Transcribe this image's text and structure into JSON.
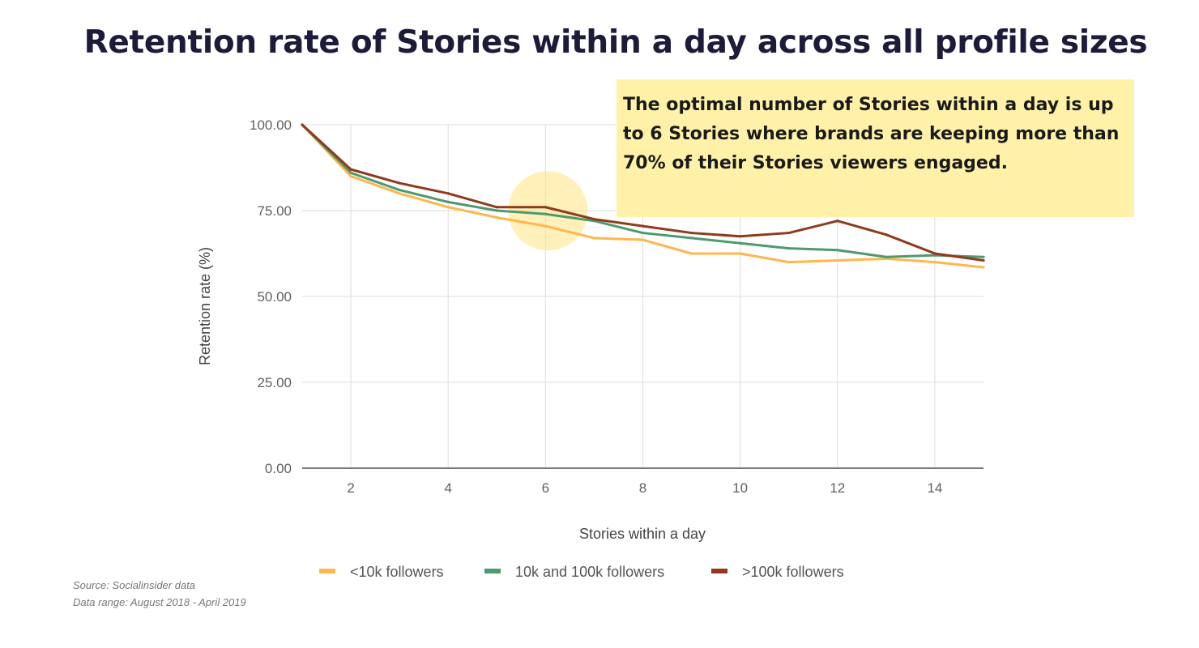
{
  "title": "Retention rate of Stories within a day across all profile sizes",
  "callout": {
    "text_before": "The optimal number of Stories within a day is up to ",
    "text_bold": "6 Stories",
    "text_after": " where brands are keeping more than 70% of their Stories viewers engaged."
  },
  "footer": {
    "source": "Source: Socialinsider data",
    "range": "Data range: August 2018 - April 2019"
  },
  "chart_data": {
    "type": "line",
    "xlabel": "Stories within a day",
    "ylabel": "Retention rate (%)",
    "xlim": [
      1,
      15
    ],
    "ylim": [
      0,
      100
    ],
    "x_ticks": [
      2,
      4,
      6,
      8,
      10,
      12,
      14
    ],
    "y_ticks": [
      "0.00",
      "25.00",
      "50.00",
      "75.00",
      "100.00"
    ],
    "grid": true,
    "legend_position": "bottom",
    "highlight_x": 6,
    "x": [
      1,
      2,
      3,
      4,
      5,
      6,
      7,
      8,
      9,
      10,
      11,
      12,
      13,
      14,
      15
    ],
    "series": [
      {
        "name": "<10k followers",
        "color": "#ffb74d",
        "values": [
          100,
          85,
          80,
          76,
          73,
          70.5,
          67,
          66.5,
          62.5,
          62.5,
          60,
          60.5,
          61,
          60,
          58.5
        ]
      },
      {
        "name": "10k and 100k followers",
        "color": "#4e9a6f",
        "values": [
          100,
          86,
          81,
          77.5,
          75,
          74,
          72,
          68.5,
          67,
          65.5,
          64,
          63.5,
          61.5,
          62,
          61.5
        ]
      },
      {
        "name": ">100k followers",
        "color": "#8f3a1c",
        "values": [
          100,
          87,
          83,
          80,
          76,
          76,
          72.5,
          70.5,
          68.5,
          67.5,
          68.5,
          72,
          68,
          62.5,
          60.5
        ]
      }
    ]
  }
}
